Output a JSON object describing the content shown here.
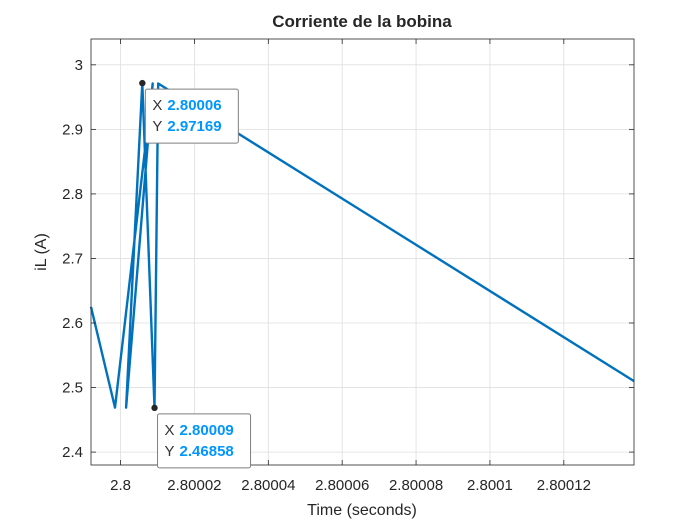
{
  "chart_data": {
    "type": "line",
    "title": "Corriente de la bobina",
    "xlabel": "Time (seconds)",
    "ylabel": "iL (A)",
    "xlim": [
      2.799992,
      2.800139
    ],
    "ylim": [
      2.38,
      3.04
    ],
    "x_ticks": [
      {
        "value": 2.8,
        "label": "2.8"
      },
      {
        "value": 2.80002,
        "label": "2.80002"
      },
      {
        "value": 2.80004,
        "label": "2.80004"
      },
      {
        "value": 2.80006,
        "label": "2.80006"
      },
      {
        "value": 2.80008,
        "label": "2.80008"
      },
      {
        "value": 2.8001,
        "label": "2.8001"
      },
      {
        "value": 2.80012,
        "label": "2.80012"
      }
    ],
    "y_ticks": [
      {
        "value": 2.4,
        "label": "2.4"
      },
      {
        "value": 2.5,
        "label": "2.5"
      },
      {
        "value": 2.6,
        "label": "2.6"
      },
      {
        "value": 2.7,
        "label": "2.7"
      },
      {
        "value": 2.8,
        "label": "2.8"
      },
      {
        "value": 2.9,
        "label": "2.9"
      },
      {
        "value": 3.0,
        "label": "3"
      }
    ],
    "grid": true,
    "series": [
      {
        "color": "#0072bd",
        "x": [
          2.799992,
          2.7999985,
          2.8000087,
          2.8000015,
          2.8000059,
          2.8000092,
          2.8000102,
          2.800139
        ],
        "y": [
          2.625,
          2.469,
          2.971,
          2.469,
          2.972,
          2.469,
          2.971,
          2.51
        ]
      }
    ],
    "datatips": [
      {
        "x_label": "X",
        "x_value": "2.80006",
        "y_label": "Y",
        "y_value": "2.97169",
        "x": 2.8000059,
        "y": 2.97169
      },
      {
        "x_label": "X",
        "x_value": "2.80009",
        "y_label": "Y",
        "y_value": "2.46858",
        "x": 2.8000092,
        "y": 2.46858
      }
    ],
    "colors": {
      "line": "#0072bd",
      "datatip_value": "#0096ff",
      "grid": "#dfdfdf",
      "axes": "#262626"
    }
  }
}
